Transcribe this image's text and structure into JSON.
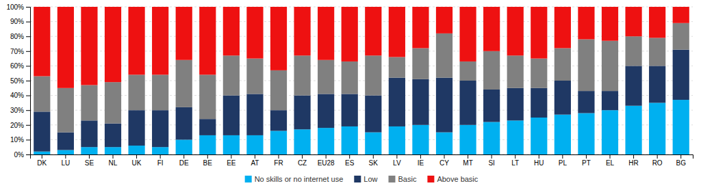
{
  "chart_data": {
    "type": "bar",
    "stacked": true,
    "categories": [
      "DK",
      "LU",
      "SE",
      "NL",
      "UK",
      "FI",
      "DE",
      "BE",
      "EE",
      "AT",
      "FR",
      "CZ",
      "EU28",
      "ES",
      "SK",
      "LV",
      "IE",
      "CY",
      "MT",
      "SI",
      "LT",
      "HU",
      "PL",
      "PT",
      "EL",
      "HR",
      "RO",
      "BG"
    ],
    "series": [
      {
        "name": "No skills or no internet use",
        "color": "#00b0f0",
        "values": [
          2,
          3,
          5,
          5,
          6,
          5,
          10,
          13,
          13,
          13,
          16,
          17,
          18,
          19,
          15,
          19,
          20,
          15,
          20,
          22,
          23,
          25,
          27,
          28,
          30,
          33,
          35,
          37
        ]
      },
      {
        "name": "Low",
        "color": "#1f3864",
        "values": [
          27,
          12,
          18,
          16,
          24,
          25,
          22,
          11,
          27,
          28,
          14,
          23,
          23,
          22,
          25,
          33,
          31,
          37,
          30,
          22,
          22,
          20,
          23,
          15,
          13,
          27,
          25,
          34
        ]
      },
      {
        "name": "Basic",
        "color": "#808080",
        "values": [
          24,
          30,
          24,
          28,
          24,
          24,
          32,
          30,
          27,
          24,
          27,
          27,
          23,
          22,
          27,
          14,
          21,
          30,
          13,
          26,
          22,
          20,
          22,
          35,
          34,
          20,
          19,
          18
        ]
      },
      {
        "name": "Above basic",
        "color": "#ee1111",
        "values": [
          47,
          55,
          53,
          51,
          46,
          46,
          36,
          46,
          33,
          35,
          43,
          33,
          36,
          37,
          33,
          34,
          28,
          18,
          37,
          30,
          33,
          35,
          28,
          22,
          23,
          20,
          21,
          11
        ]
      }
    ],
    "ylim": [
      0,
      100
    ],
    "yticks": [
      {
        "value": 0,
        "label": "0%"
      },
      {
        "value": 10,
        "label": "10%"
      },
      {
        "value": 20,
        "label": "20%"
      },
      {
        "value": 30,
        "label": "30%"
      },
      {
        "value": 40,
        "label": "40%"
      },
      {
        "value": 50,
        "label": "50%"
      },
      {
        "value": 60,
        "label": "60%"
      },
      {
        "value": 70,
        "label": "70%"
      },
      {
        "value": 80,
        "label": "80%"
      },
      {
        "value": 90,
        "label": "90%"
      },
      {
        "value": 100,
        "label": "100%"
      }
    ],
    "grid": true,
    "legend": "bottom"
  }
}
